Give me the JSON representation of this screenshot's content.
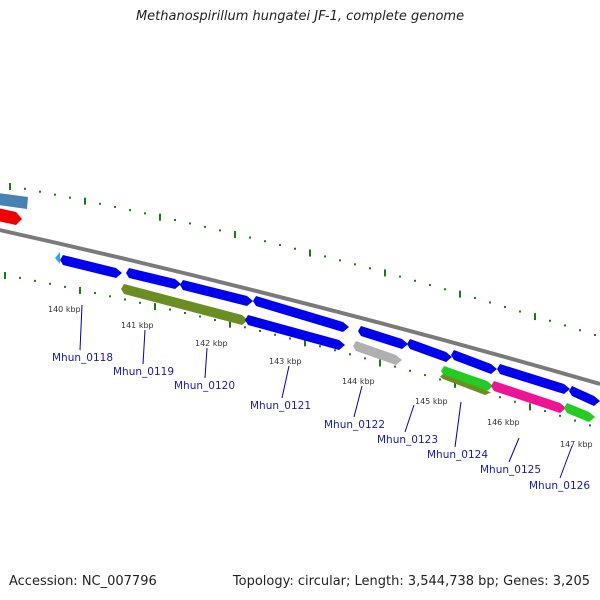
{
  "title": "Methanospirillum hungatei JF-1, complete genome",
  "accession_text": "Accession: NC_007796",
  "summary_text": "Topology: circular; Length: 3,544,738 bp; Genes: 3,205",
  "colors": {
    "backbone": "#7a7a7a",
    "tick": "#1a7a1a",
    "cds_blue": "#0000ee",
    "steel_blue": "#4682b4",
    "red": "#ee0000",
    "olive": "#6b8e23",
    "gray": "#b0b0b0",
    "green": "#22cc22",
    "magenta": "#ee1493",
    "cyan": "#22aaee",
    "leader": "#0000aa"
  },
  "kbp_labels": [
    "140 kbp",
    "141 kbp",
    "142 kbp",
    "143 kbp",
    "144 kbp",
    "145 kbp",
    "146 kbp",
    "147 kbp"
  ],
  "gene_labels": [
    "Mhun_0118",
    "Mhun_0119",
    "Mhun_0120",
    "Mhun_0121",
    "Mhun_0122",
    "Mhun_0123",
    "Mhun_0124",
    "Mhun_0125",
    "Mhun_0126"
  ]
}
